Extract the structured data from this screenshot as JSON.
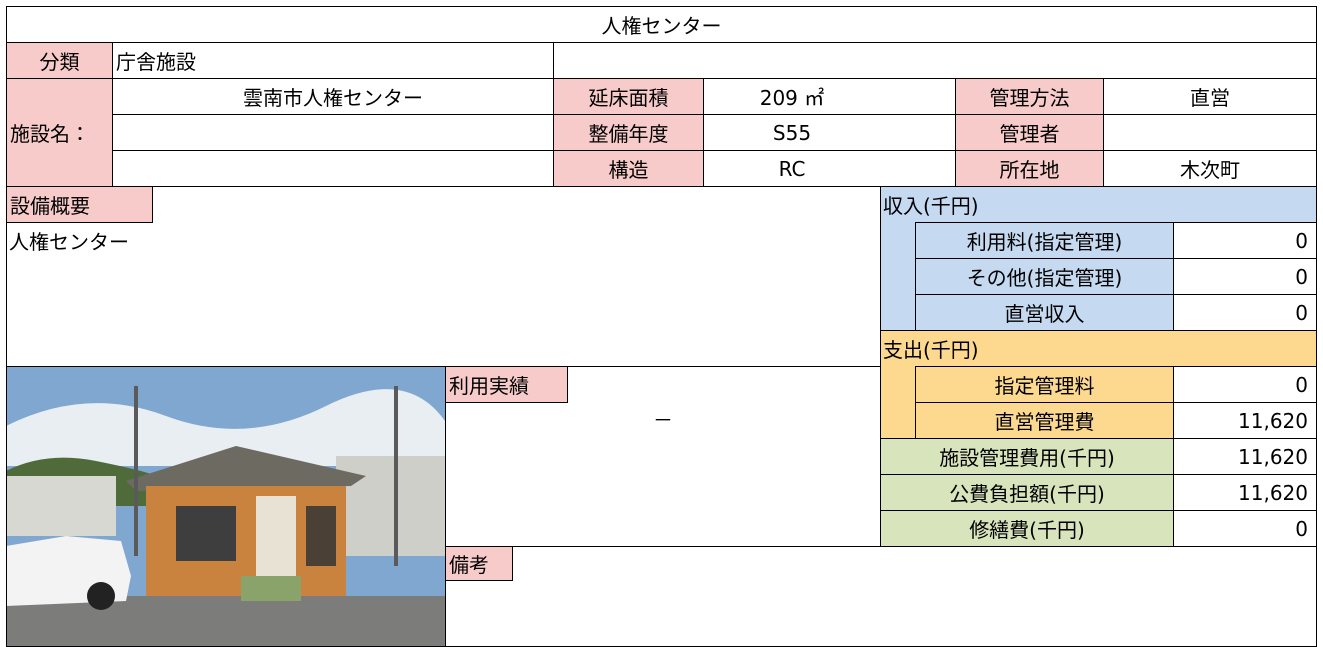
{
  "title": "人権センター",
  "classification": {
    "label": "分類",
    "value": "庁舎施設"
  },
  "facility": {
    "label": "施設名：",
    "name": "雲南市人権センター"
  },
  "attributes": [
    {
      "label": "延床面積",
      "value": "209 ㎡"
    },
    {
      "label": "整備年度",
      "value": "S55"
    },
    {
      "label": "構造",
      "value": "RC"
    }
  ],
  "management": [
    {
      "label": "管理方法",
      "value": "直営"
    },
    {
      "label": "管理者"
    },
    {
      "label": "所在地",
      "value": "木次町"
    }
  ],
  "overview": {
    "label": "設備概要",
    "text": "人権センター"
  },
  "income": {
    "label": "収入(千円)",
    "rows": [
      {
        "label": "利用料(指定管理)",
        "value": 0
      },
      {
        "label": "その他(指定管理)",
        "value": 0
      },
      {
        "label": "直営収入",
        "value": 0
      }
    ]
  },
  "expense": {
    "label": "支出(千円)",
    "rows": [
      {
        "label": "指定管理料",
        "value": 0
      },
      {
        "label": "直営管理費",
        "value": 11620,
        "value_label": "11,620"
      }
    ]
  },
  "totals": [
    {
      "label": "施設管理費用(千円)",
      "value": 11620,
      "value_label": "11,620"
    },
    {
      "label": "公費負担額(千円)",
      "value": 11620,
      "value_label": "11,620"
    },
    {
      "label": "修繕費(千円)",
      "value": 0
    }
  ],
  "usage": {
    "label": "利用実績",
    "value": "－"
  },
  "remarks": {
    "label": "備考"
  }
}
